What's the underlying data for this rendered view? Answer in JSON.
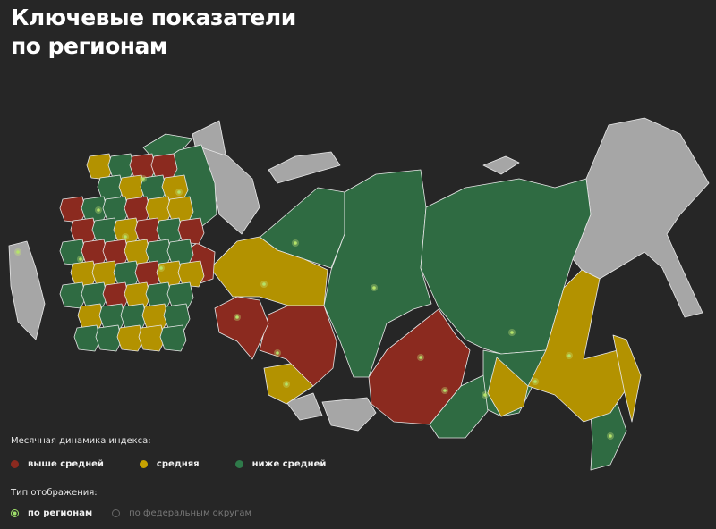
{
  "header": {
    "title_line1": "Ключевые показатели",
    "title_line2": "по регионам"
  },
  "legend": {
    "title": "Месячная динамика индекса:",
    "items": [
      {
        "label": "выше средней",
        "color": "#8b2a1f"
      },
      {
        "label": "средняя",
        "color": "#b39200"
      },
      {
        "label": "ниже средней",
        "color": "#2f6b42"
      }
    ],
    "no_data_color": "#a6a6a6"
  },
  "display_type": {
    "title": "Тип отображения:",
    "options": [
      {
        "label": "по регионам",
        "selected": true
      },
      {
        "label": "по федеральным округам",
        "selected": false
      }
    ]
  }
}
